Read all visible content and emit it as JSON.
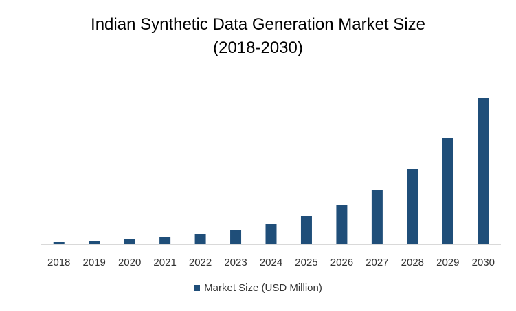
{
  "chart_data": {
    "type": "bar",
    "title": "Indian Synthetic Data Generation Market Size",
    "subtitle": "(2018-2030)",
    "categories": [
      "2018",
      "2019",
      "2020",
      "2021",
      "2022",
      "2023",
      "2024",
      "2025",
      "2026",
      "2027",
      "2028",
      "2029",
      "2030"
    ],
    "series": [
      {
        "name": "Market Size (USD Million)",
        "values": [
          3,
          4,
          7,
          10,
          14,
          20,
          28,
          40,
          56,
          78,
          109,
          153,
          211
        ],
        "color": "#1f4e79"
      }
    ],
    "xlabel": "",
    "ylabel": "",
    "ylim": [
      0,
      230
    ],
    "grid": false,
    "legend": "bottom-center",
    "note": "y-axis unlabeled; values are relative estimates"
  }
}
